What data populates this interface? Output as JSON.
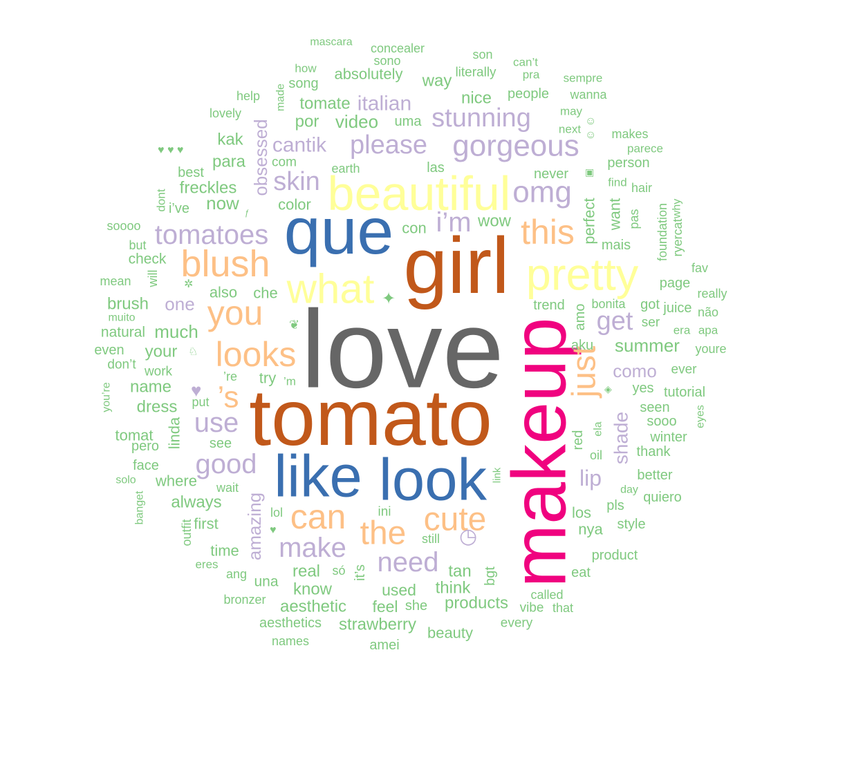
{
  "palette": {
    "dark_gray": "#666666",
    "dark_orange": "#c1581a",
    "blue": "#3a6fb0",
    "magenta": "#f0027f",
    "yellow": "#ffff99",
    "orange": "#fdc086",
    "purple": "#beaed4",
    "green": "#7fc97f"
  },
  "words": [
    {
      "text": "love",
      "color": "dark_gray"
    },
    {
      "text": "tomato",
      "color": "dark_orange"
    },
    {
      "text": "girl",
      "color": "dark_orange"
    },
    {
      "text": "que",
      "color": "blue"
    },
    {
      "text": "makeup",
      "color": "magenta"
    },
    {
      "text": "like",
      "color": "blue"
    },
    {
      "text": "look",
      "color": "blue"
    },
    {
      "text": "beautiful",
      "color": "yellow"
    },
    {
      "text": "pretty",
      "color": "yellow"
    },
    {
      "text": "what",
      "color": "yellow"
    },
    {
      "text": "blush",
      "color": "orange"
    },
    {
      "text": "this",
      "color": "orange"
    },
    {
      "text": "you",
      "color": "orange"
    },
    {
      "text": "looks",
      "color": "orange"
    },
    {
      "text": "can",
      "color": "orange"
    },
    {
      "text": "cute",
      "color": "orange"
    },
    {
      "text": "the",
      "color": "orange"
    },
    {
      "text": "just",
      "color": "orange"
    },
    {
      "text": "’s",
      "color": "orange"
    },
    {
      "text": "gorgeous",
      "color": "purple"
    },
    {
      "text": "please",
      "color": "purple"
    },
    {
      "text": "stunning",
      "color": "purple"
    },
    {
      "text": "omg",
      "color": "purple"
    },
    {
      "text": "tomatoes",
      "color": "purple"
    },
    {
      "text": "skin",
      "color": "purple"
    },
    {
      "text": "cantik",
      "color": "purple"
    },
    {
      "text": "i’m",
      "color": "purple"
    },
    {
      "text": "use",
      "color": "purple"
    },
    {
      "text": "good",
      "color": "purple"
    },
    {
      "text": "make",
      "color": "purple"
    },
    {
      "text": "need",
      "color": "purple"
    },
    {
      "text": "get",
      "color": "purple"
    },
    {
      "text": "lip",
      "color": "purple"
    },
    {
      "text": "como",
      "color": "purple"
    },
    {
      "text": "italian",
      "color": "purple"
    },
    {
      "text": "one",
      "color": "purple"
    },
    {
      "text": "obsessed",
      "color": "purple"
    },
    {
      "text": "amazing",
      "color": "purple"
    },
    {
      "text": "shade",
      "color": "purple"
    },
    {
      "text": "mascara",
      "color": "green"
    },
    {
      "text": "concealer",
      "color": "green"
    },
    {
      "text": "sono",
      "color": "green"
    },
    {
      "text": "son",
      "color": "green"
    },
    {
      "text": "can’t",
      "color": "green"
    },
    {
      "text": "pra",
      "color": "green"
    },
    {
      "text": "sempre",
      "color": "green"
    },
    {
      "text": "how",
      "color": "green"
    },
    {
      "text": "absolutely",
      "color": "green"
    },
    {
      "text": "literally",
      "color": "green"
    },
    {
      "text": "way",
      "color": "green"
    },
    {
      "text": "people",
      "color": "green"
    },
    {
      "text": "wanna",
      "color": "green"
    },
    {
      "text": "help",
      "color": "green"
    },
    {
      "text": "made",
      "color": "green"
    },
    {
      "text": "song",
      "color": "green"
    },
    {
      "text": "tomate",
      "color": "green"
    },
    {
      "text": "nice",
      "color": "green"
    },
    {
      "text": "may",
      "color": "green"
    },
    {
      "text": "lovely",
      "color": "green"
    },
    {
      "text": "por",
      "color": "green"
    },
    {
      "text": "video",
      "color": "green"
    },
    {
      "text": "uma",
      "color": "green"
    },
    {
      "text": "next",
      "color": "green"
    },
    {
      "text": "makes",
      "color": "green"
    },
    {
      "text": "parece",
      "color": "green"
    },
    {
      "text": "kak",
      "color": "green"
    },
    {
      "text": "para",
      "color": "green"
    },
    {
      "text": "com",
      "color": "green"
    },
    {
      "text": "earth",
      "color": "green"
    },
    {
      "text": "las",
      "color": "green"
    },
    {
      "text": "never",
      "color": "green"
    },
    {
      "text": "person",
      "color": "green"
    },
    {
      "text": "best",
      "color": "green"
    },
    {
      "text": "freckles",
      "color": "green"
    },
    {
      "text": "find",
      "color": "green"
    },
    {
      "text": "hair",
      "color": "green"
    },
    {
      "text": "dont",
      "color": "green"
    },
    {
      "text": "i’ve",
      "color": "green"
    },
    {
      "text": "now",
      "color": "green"
    },
    {
      "text": "color",
      "color": "green"
    },
    {
      "text": "perfect",
      "color": "green"
    },
    {
      "text": "want",
      "color": "green"
    },
    {
      "text": "pas",
      "color": "green"
    },
    {
      "text": "foundation",
      "color": "green"
    },
    {
      "text": "ryercat",
      "color": "green"
    },
    {
      "text": "why",
      "color": "green"
    },
    {
      "text": "soooo",
      "color": "green"
    },
    {
      "text": "con",
      "color": "green"
    },
    {
      "text": "wow",
      "color": "green"
    },
    {
      "text": "but",
      "color": "green"
    },
    {
      "text": "mais",
      "color": "green"
    },
    {
      "text": "check",
      "color": "green"
    },
    {
      "text": "fav",
      "color": "green"
    },
    {
      "text": "mean",
      "color": "green"
    },
    {
      "text": "will",
      "color": "green"
    },
    {
      "text": "also",
      "color": "green"
    },
    {
      "text": "che",
      "color": "green"
    },
    {
      "text": "page",
      "color": "green"
    },
    {
      "text": "really",
      "color": "green"
    },
    {
      "text": "brush",
      "color": "green"
    },
    {
      "text": "trend",
      "color": "green"
    },
    {
      "text": "bonita",
      "color": "green"
    },
    {
      "text": "got",
      "color": "green"
    },
    {
      "text": "juice",
      "color": "green"
    },
    {
      "text": "não",
      "color": "green"
    },
    {
      "text": "muito",
      "color": "green"
    },
    {
      "text": "ser",
      "color": "green"
    },
    {
      "text": "natural",
      "color": "green"
    },
    {
      "text": "much",
      "color": "green"
    },
    {
      "text": "amo",
      "color": "green"
    },
    {
      "text": "era",
      "color": "green"
    },
    {
      "text": "apa",
      "color": "green"
    },
    {
      "text": "even",
      "color": "green"
    },
    {
      "text": "your",
      "color": "green"
    },
    {
      "text": "aku",
      "color": "green"
    },
    {
      "text": "summer",
      "color": "green"
    },
    {
      "text": "youre",
      "color": "green"
    },
    {
      "text": "don’t",
      "color": "green"
    },
    {
      "text": "work",
      "color": "green"
    },
    {
      "text": "’re",
      "color": "green"
    },
    {
      "text": "ever",
      "color": "green"
    },
    {
      "text": "you’re",
      "color": "green"
    },
    {
      "text": "name",
      "color": "green"
    },
    {
      "text": "try",
      "color": "green"
    },
    {
      "text": "’m",
      "color": "green"
    },
    {
      "text": "yes",
      "color": "green"
    },
    {
      "text": "tutorial",
      "color": "green"
    },
    {
      "text": "put",
      "color": "green"
    },
    {
      "text": "dress",
      "color": "green"
    },
    {
      "text": "seen",
      "color": "green"
    },
    {
      "text": "eyes",
      "color": "green"
    },
    {
      "text": "linda",
      "color": "green"
    },
    {
      "text": "sooo",
      "color": "green"
    },
    {
      "text": "tomat",
      "color": "green"
    },
    {
      "text": "red",
      "color": "green"
    },
    {
      "text": "ela",
      "color": "green"
    },
    {
      "text": "winter",
      "color": "green"
    },
    {
      "text": "see",
      "color": "green"
    },
    {
      "text": "pero",
      "color": "green"
    },
    {
      "text": "oil",
      "color": "green"
    },
    {
      "text": "thank",
      "color": "green"
    },
    {
      "text": "face",
      "color": "green"
    },
    {
      "text": "link",
      "color": "green"
    },
    {
      "text": "better",
      "color": "green"
    },
    {
      "text": "solo",
      "color": "green"
    },
    {
      "text": "where",
      "color": "green"
    },
    {
      "text": "wait",
      "color": "green"
    },
    {
      "text": "day",
      "color": "green"
    },
    {
      "text": "quiero",
      "color": "green"
    },
    {
      "text": "banget",
      "color": "green"
    },
    {
      "text": "always",
      "color": "green"
    },
    {
      "text": "pls",
      "color": "green"
    },
    {
      "text": "los",
      "color": "green"
    },
    {
      "text": "outfit",
      "color": "green"
    },
    {
      "text": "first",
      "color": "green"
    },
    {
      "text": "lol",
      "color": "green"
    },
    {
      "text": "ini",
      "color": "green"
    },
    {
      "text": "nya",
      "color": "green"
    },
    {
      "text": "style",
      "color": "green"
    },
    {
      "text": "time",
      "color": "green"
    },
    {
      "text": "still",
      "color": "green"
    },
    {
      "text": "product",
      "color": "green"
    },
    {
      "text": "eres",
      "color": "green"
    },
    {
      "text": "ang",
      "color": "green"
    },
    {
      "text": "una",
      "color": "green"
    },
    {
      "text": "real",
      "color": "green"
    },
    {
      "text": "só",
      "color": "green"
    },
    {
      "text": "it’s",
      "color": "green"
    },
    {
      "text": "tan",
      "color": "green"
    },
    {
      "text": "bgt",
      "color": "green"
    },
    {
      "text": "eat",
      "color": "green"
    },
    {
      "text": "know",
      "color": "green"
    },
    {
      "text": "used",
      "color": "green"
    },
    {
      "text": "think",
      "color": "green"
    },
    {
      "text": "called",
      "color": "green"
    },
    {
      "text": "bronzer",
      "color": "green"
    },
    {
      "text": "aesthetic",
      "color": "green"
    },
    {
      "text": "feel",
      "color": "green"
    },
    {
      "text": "she",
      "color": "green"
    },
    {
      "text": "products",
      "color": "green"
    },
    {
      "text": "vibe",
      "color": "green"
    },
    {
      "text": "that",
      "color": "green"
    },
    {
      "text": "aesthetics",
      "color": "green"
    },
    {
      "text": "strawberry",
      "color": "green"
    },
    {
      "text": "beauty",
      "color": "green"
    },
    {
      "text": "every",
      "color": "green"
    },
    {
      "text": "names",
      "color": "green"
    },
    {
      "text": "amei",
      "color": "green"
    }
  ]
}
